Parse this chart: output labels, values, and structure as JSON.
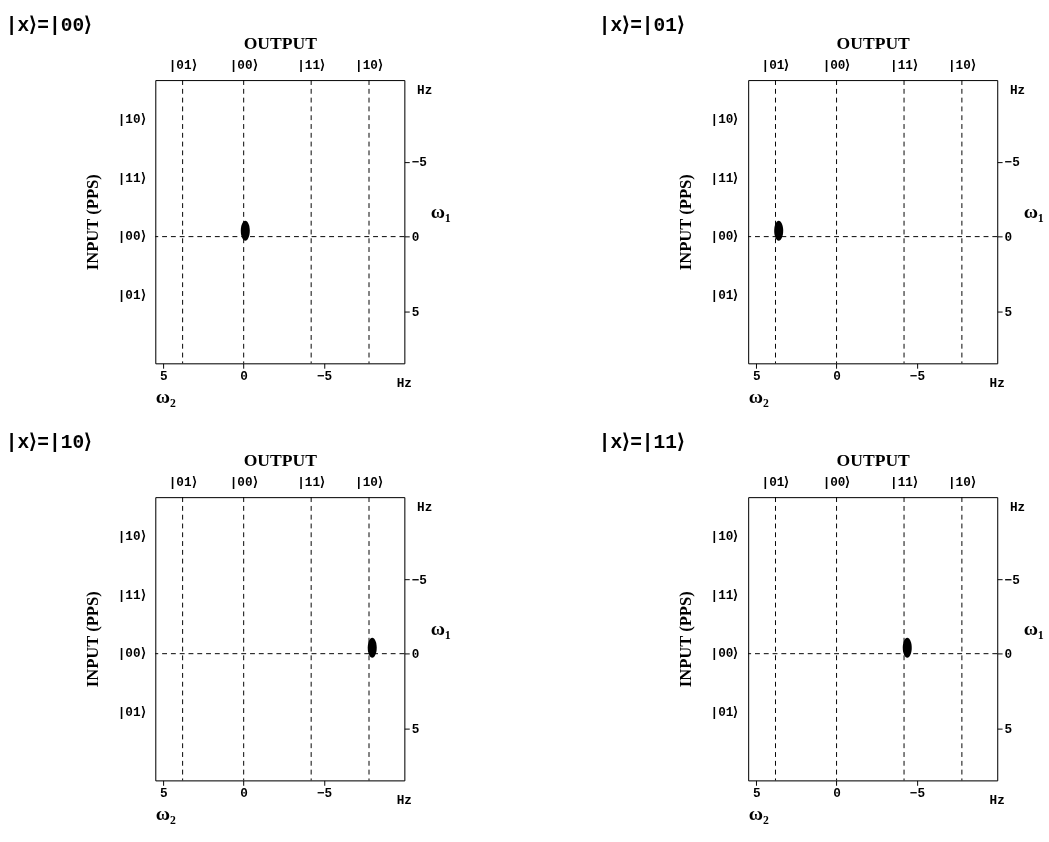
{
  "chart_data": [
    {
      "type": "scatter",
      "title": "|x⟩=|00⟩",
      "xlabel": "ω₂",
      "x2label": "OUTPUT",
      "ylabel": "INPUT (PPS)",
      "y2label": "ω₁",
      "series": [
        {
          "color": "#000000",
          "x": [
            -0.1
          ],
          "values": [
            -0.4
          ]
        }
      ],
      "xlim": [
        5.5,
        -10
      ],
      "xticks": [
        5,
        0,
        -5
      ],
      "ylim": [
        8.5,
        -10.5
      ],
      "yticks": [
        -5,
        0,
        5
      ],
      "ref_lines": [
        {
          "axis": "x",
          "value": 3.8,
          "label": "|01⟩",
          "line_style": "dashed"
        },
        {
          "axis": "x",
          "value": 0,
          "label": "|00⟩",
          "line_style": "dashed"
        },
        {
          "axis": "x",
          "value": -4.2,
          "label": "|11⟩",
          "line_style": "dashed"
        },
        {
          "axis": "x",
          "value": -7.8,
          "label": "|10⟩",
          "line_style": "dashed"
        },
        {
          "axis": "y",
          "value": 0,
          "line_style": "dashed"
        }
      ],
      "annotations": [
        "|10⟩",
        "|11⟩",
        "|00⟩",
        "|01⟩",
        "Hz",
        "Hz"
      ]
    },
    {
      "type": "scatter",
      "title": "|x⟩=|01⟩",
      "xlabel": "ω₂",
      "x2label": "OUTPUT",
      "ylabel": "INPUT (PPS)",
      "y2label": "ω₁",
      "series": [
        {
          "color": "#000000",
          "x": [
            3.6
          ],
          "values": [
            -0.4
          ]
        }
      ],
      "xlim": [
        5.5,
        -10
      ],
      "xticks": [
        5,
        0,
        -5
      ],
      "ylim": [
        8.5,
        -10.5
      ],
      "yticks": [
        -5,
        0,
        5
      ],
      "ref_lines": [
        {
          "axis": "x",
          "value": 3.8,
          "label": "|01⟩",
          "line_style": "dashed"
        },
        {
          "axis": "x",
          "value": 0,
          "label": "|00⟩",
          "line_style": "dashed"
        },
        {
          "axis": "x",
          "value": -4.2,
          "label": "|11⟩",
          "line_style": "dashed"
        },
        {
          "axis": "x",
          "value": -7.8,
          "label": "|10⟩",
          "line_style": "dashed"
        },
        {
          "axis": "y",
          "value": 0,
          "line_style": "dashed"
        }
      ],
      "annotations": [
        "|10⟩",
        "|11⟩",
        "|00⟩",
        "|01⟩",
        "Hz",
        "Hz"
      ]
    },
    {
      "type": "scatter",
      "title": "|x⟩=|10⟩",
      "xlabel": "ω₂",
      "x2label": "OUTPUT",
      "ylabel": "INPUT (PPS)",
      "y2label": "ω₁",
      "series": [
        {
          "color": "#000000",
          "x": [
            -8.0
          ],
          "values": [
            -0.4
          ]
        }
      ],
      "xlim": [
        5.5,
        -10
      ],
      "xticks": [
        5,
        0,
        -5
      ],
      "ylim": [
        8.5,
        -10.5
      ],
      "yticks": [
        -5,
        0,
        5
      ],
      "ref_lines": [
        {
          "axis": "x",
          "value": 3.8,
          "label": "|01⟩",
          "line_style": "dashed"
        },
        {
          "axis": "x",
          "value": 0,
          "label": "|00⟩",
          "line_style": "dashed"
        },
        {
          "axis": "x",
          "value": -4.2,
          "label": "|11⟩",
          "line_style": "dashed"
        },
        {
          "axis": "x",
          "value": -7.8,
          "label": "|10⟩",
          "line_style": "dashed"
        },
        {
          "axis": "y",
          "value": 0,
          "line_style": "dashed"
        }
      ],
      "annotations": [
        "|10⟩",
        "|11⟩",
        "|00⟩",
        "|01⟩",
        "Hz",
        "Hz"
      ]
    },
    {
      "type": "scatter",
      "title": "|x⟩=|11⟩",
      "xlabel": "ω₂",
      "x2label": "OUTPUT",
      "ylabel": "INPUT (PPS)",
      "y2label": "ω₁",
      "series": [
        {
          "color": "#000000",
          "x": [
            -4.4
          ],
          "values": [
            -0.4
          ]
        }
      ],
      "xlim": [
        5.5,
        -10
      ],
      "xticks": [
        5,
        0,
        -5
      ],
      "ylim": [
        8.5,
        -10.5
      ],
      "yticks": [
        -5,
        0,
        5
      ],
      "ref_lines": [
        {
          "axis": "x",
          "value": 3.8,
          "label": "|01⟩",
          "line_style": "dashed"
        },
        {
          "axis": "x",
          "value": 0,
          "label": "|00⟩",
          "line_style": "dashed"
        },
        {
          "axis": "x",
          "value": -4.2,
          "label": "|11⟩",
          "line_style": "dashed"
        },
        {
          "axis": "x",
          "value": -7.8,
          "label": "|10⟩",
          "line_style": "dashed"
        },
        {
          "axis": "y",
          "value": 0,
          "line_style": "dashed"
        }
      ],
      "annotations": [
        "|10⟩",
        "|11⟩",
        "|00⟩",
        "|01⟩",
        "Hz",
        "Hz"
      ]
    }
  ]
}
